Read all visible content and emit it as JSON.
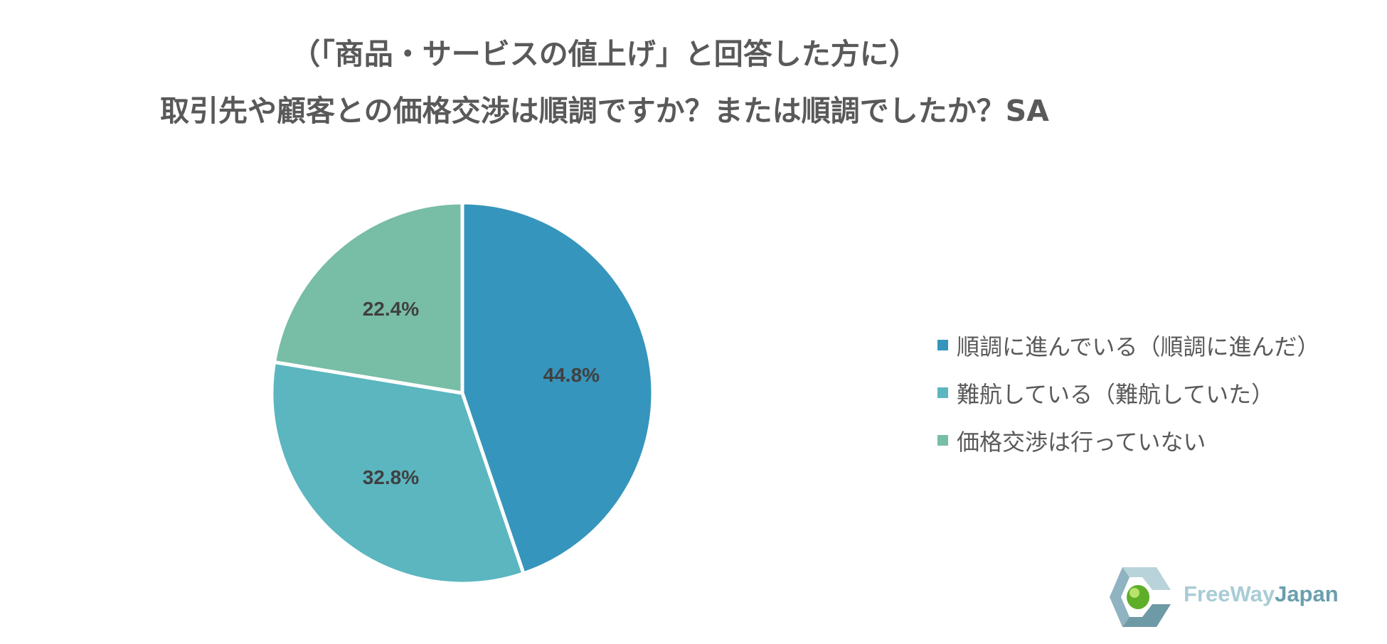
{
  "title": {
    "line1": "（「商品・サービスの値上げ」と回答した方に）",
    "line2": "取引先や顧客との価格交渉は順調ですか？または順調でしたか？SA"
  },
  "chart_data": {
    "type": "pie",
    "categories": [
      "順調に進んでいる（順調に進んだ）",
      "難航している（難航していた）",
      "価格交渉は行っていない"
    ],
    "values": [
      44.8,
      32.8,
      22.4
    ],
    "data_labels": [
      "44.8%",
      "32.8%",
      "22.4%"
    ],
    "colors": [
      "#3695bc",
      "#5bb6c0",
      "#78bda6"
    ],
    "start_angle_deg": 0,
    "direction": "clockwise",
    "legend_position": "right"
  },
  "logo": {
    "part1": "FreeWay",
    "part2": "Japan",
    "color1": "#a8ccd6",
    "color2": "#6b9fac"
  }
}
